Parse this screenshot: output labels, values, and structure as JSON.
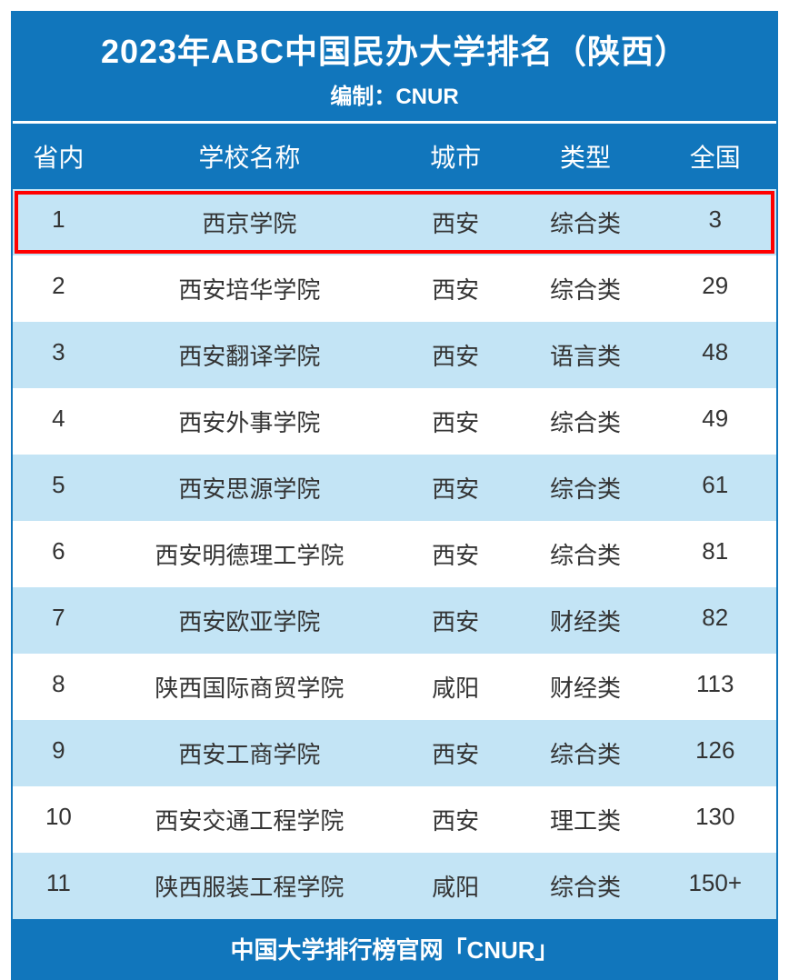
{
  "header": {
    "title": "2023年ABC中国民办大学排名（陕西）",
    "subtitle": "编制：CNUR"
  },
  "columns": {
    "rank": "省内",
    "name": "学校名称",
    "city": "城市",
    "type": "类型",
    "national": "全国"
  },
  "rows": [
    {
      "rank": "1",
      "name": "西京学院",
      "city": "西安",
      "type": "综合类",
      "national": "3",
      "highlighted": true
    },
    {
      "rank": "2",
      "name": "西安培华学院",
      "city": "西安",
      "type": "综合类",
      "national": "29",
      "highlighted": false
    },
    {
      "rank": "3",
      "name": "西安翻译学院",
      "city": "西安",
      "type": "语言类",
      "national": "48",
      "highlighted": false
    },
    {
      "rank": "4",
      "name": "西安外事学院",
      "city": "西安",
      "type": "综合类",
      "national": "49",
      "highlighted": false
    },
    {
      "rank": "5",
      "name": "西安思源学院",
      "city": "西安",
      "type": "综合类",
      "national": "61",
      "highlighted": false
    },
    {
      "rank": "6",
      "name": "西安明德理工学院",
      "city": "西安",
      "type": "综合类",
      "national": "81",
      "highlighted": false
    },
    {
      "rank": "7",
      "name": "西安欧亚学院",
      "city": "西安",
      "type": "财经类",
      "national": "82",
      "highlighted": false
    },
    {
      "rank": "8",
      "name": "陕西国际商贸学院",
      "city": "咸阳",
      "type": "财经类",
      "national": "113",
      "highlighted": false
    },
    {
      "rank": "9",
      "name": "西安工商学院",
      "city": "西安",
      "type": "综合类",
      "national": "126",
      "highlighted": false
    },
    {
      "rank": "10",
      "name": "西安交通工程学院",
      "city": "西安",
      "type": "理工类",
      "national": "130",
      "highlighted": false
    },
    {
      "rank": "11",
      "name": "陕西服装工程学院",
      "city": "咸阳",
      "type": "综合类",
      "national": "150+",
      "highlighted": false
    }
  ],
  "footer": {
    "text": "中国大学排行榜官网「CNUR」"
  },
  "colors": {
    "header_bg": "#1176bc",
    "header_text": "#ffffff",
    "row_odd_bg": "#c3e4f5",
    "row_even_bg": "#ffffff",
    "highlight_border": "#ff0000",
    "text_color": "#333333"
  }
}
